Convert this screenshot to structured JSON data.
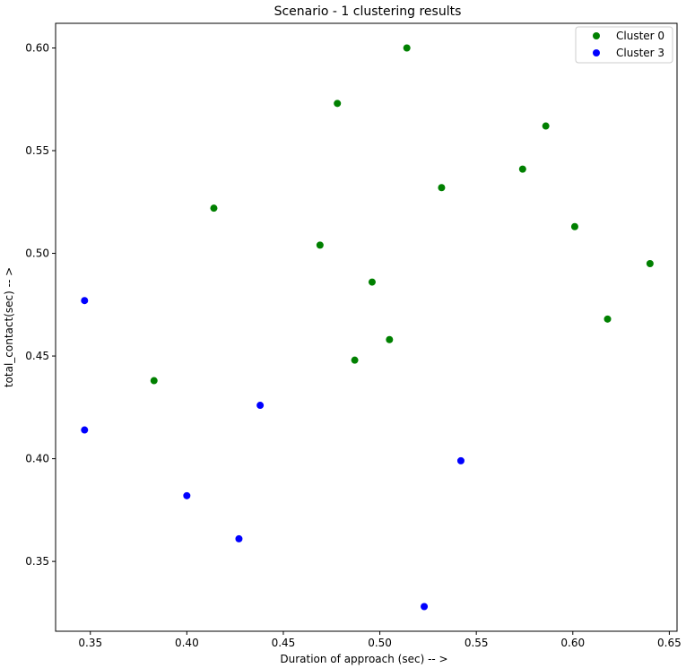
{
  "chart_data": {
    "type": "scatter",
    "title": "Scenario - 1 clustering results",
    "xlabel": "Duration of approach (sec) -- >",
    "ylabel": "total_contact(sec) -- >",
    "xlim": [
      0.332,
      0.654
    ],
    "ylim": [
      0.316,
      0.612
    ],
    "xticks": [
      0.35,
      0.4,
      0.45,
      0.5,
      0.55,
      0.6,
      0.65
    ],
    "xtick_labels": [
      "0.35",
      "0.40",
      "0.45",
      "0.50",
      "0.55",
      "0.60",
      "0.65"
    ],
    "yticks": [
      0.35,
      0.4,
      0.45,
      0.5,
      0.55,
      0.6
    ],
    "ytick_labels": [
      "0.35",
      "0.40",
      "0.45",
      "0.50",
      "0.55",
      "0.60"
    ],
    "grid": false,
    "legend_position": "top-right",
    "series": [
      {
        "name": "Cluster 0",
        "color": "#008000",
        "points": [
          [
            0.514,
            0.6
          ],
          [
            0.478,
            0.573
          ],
          [
            0.586,
            0.562
          ],
          [
            0.574,
            0.541
          ],
          [
            0.532,
            0.532
          ],
          [
            0.414,
            0.522
          ],
          [
            0.601,
            0.513
          ],
          [
            0.469,
            0.504
          ],
          [
            0.64,
            0.495
          ],
          [
            0.496,
            0.486
          ],
          [
            0.618,
            0.468
          ],
          [
            0.505,
            0.458
          ],
          [
            0.487,
            0.448
          ],
          [
            0.383,
            0.438
          ]
        ]
      },
      {
        "name": "Cluster 3",
        "color": "#0000ff",
        "points": [
          [
            0.347,
            0.477
          ],
          [
            0.438,
            0.426
          ],
          [
            0.347,
            0.414
          ],
          [
            0.542,
            0.399
          ],
          [
            0.4,
            0.382
          ],
          [
            0.427,
            0.361
          ],
          [
            0.523,
            0.328
          ]
        ]
      }
    ]
  }
}
